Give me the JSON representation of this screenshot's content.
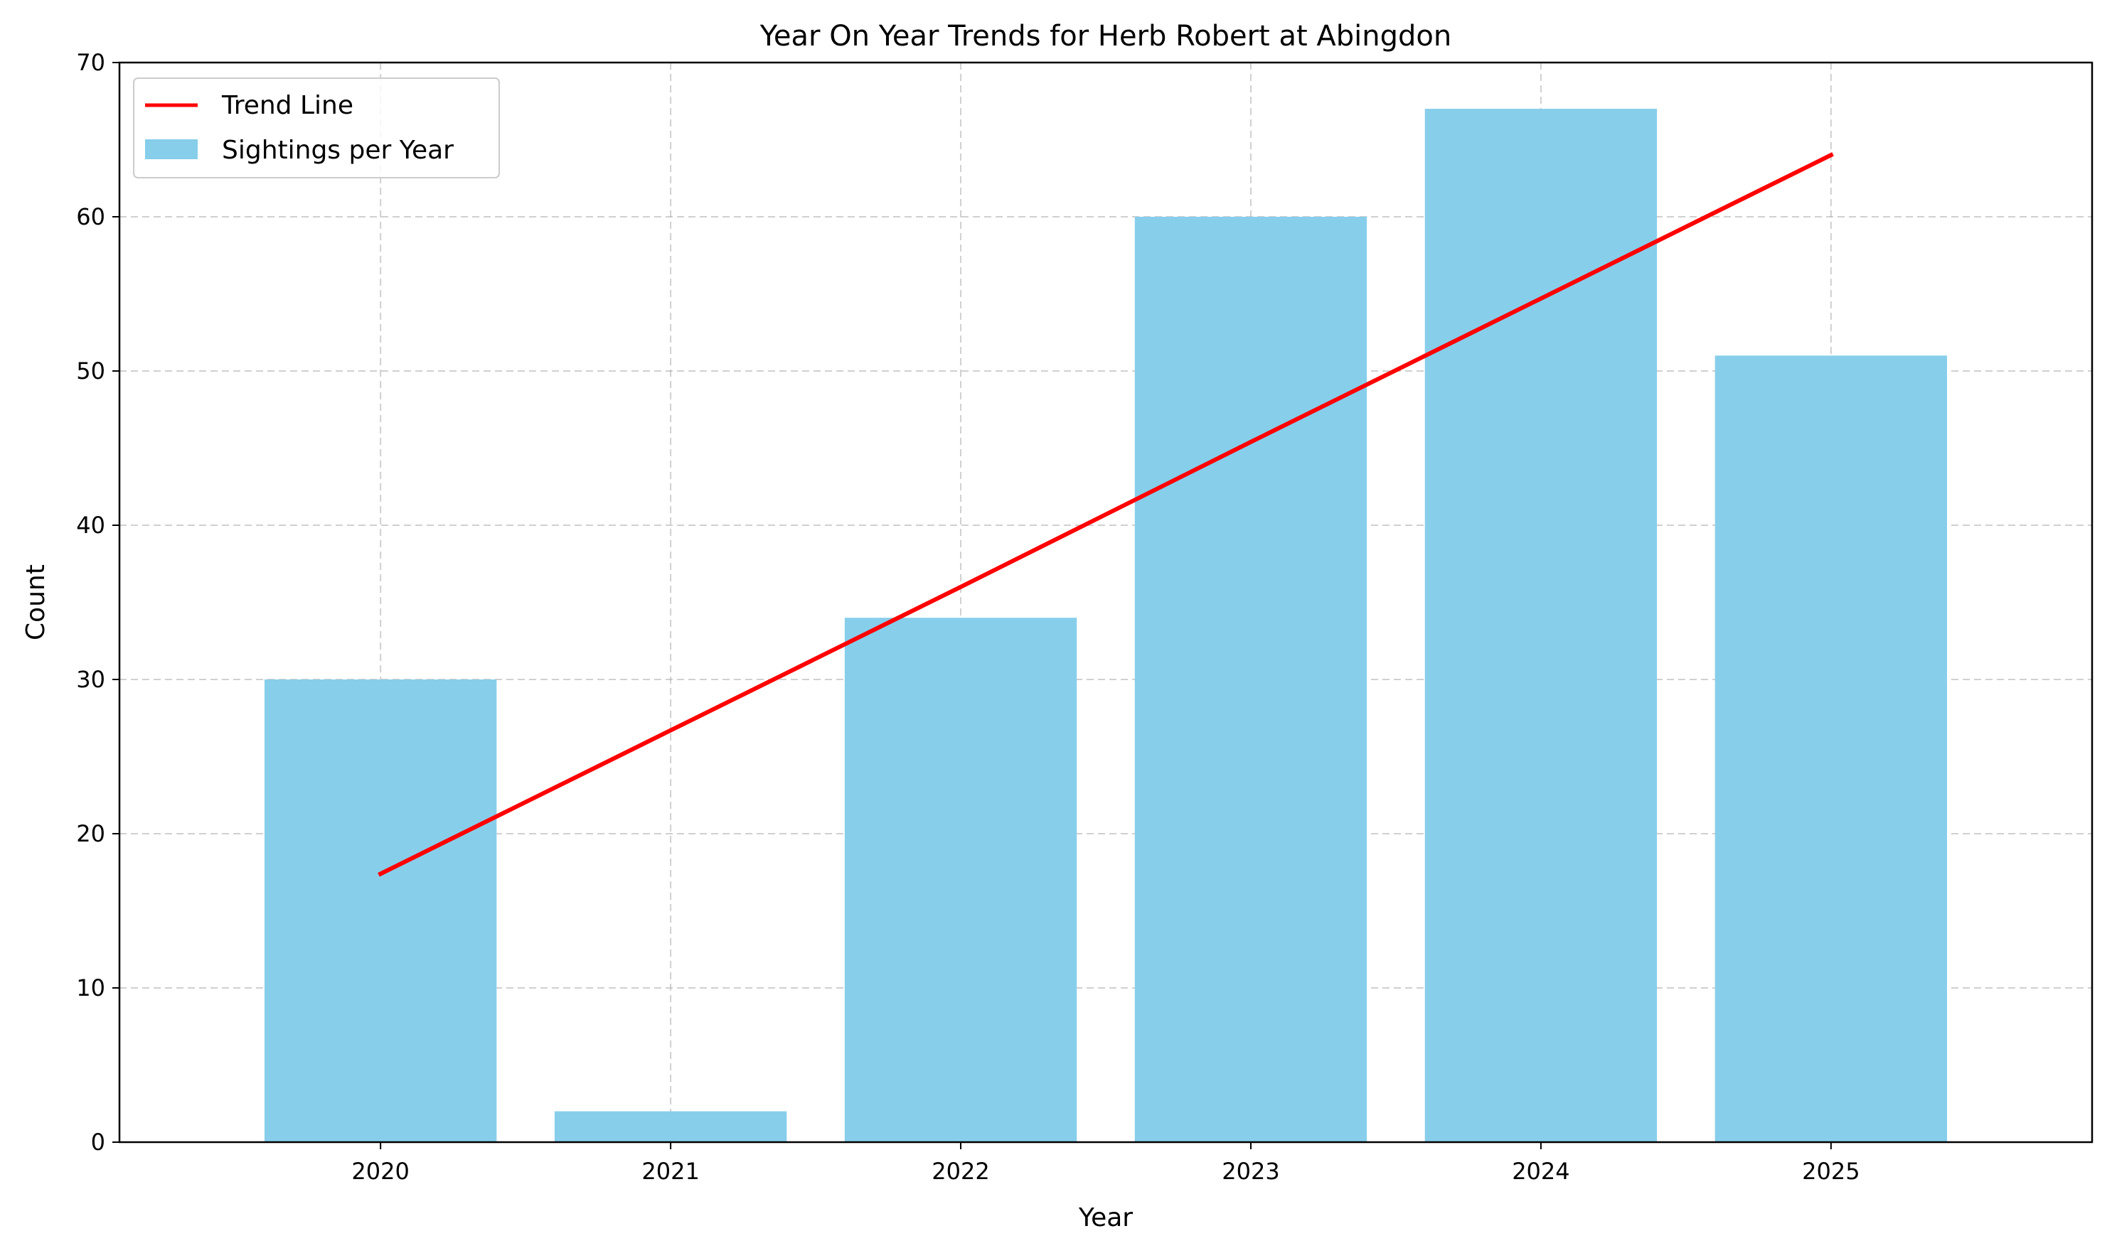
{
  "chart_data": {
    "type": "bar",
    "title": "Year On Year Trends for Herb Robert at Abingdon",
    "xlabel": "Year",
    "ylabel": "Count",
    "categories": [
      "2020",
      "2021",
      "2022",
      "2023",
      "2024",
      "2025"
    ],
    "series": [
      {
        "name": "Sightings per Year",
        "type": "bar",
        "values": [
          30,
          2,
          34,
          60,
          67,
          51
        ],
        "color": "#87ceeb"
      },
      {
        "name": "Trend Line",
        "type": "line",
        "values": [
          17.4,
          26.7,
          36.0,
          45.4,
          54.7,
          64.0
        ],
        "color": "#ff0000"
      }
    ],
    "ylim": [
      0,
      70
    ],
    "yticks": [
      0,
      10,
      20,
      30,
      40,
      50,
      60,
      70
    ],
    "grid": true,
    "legend": {
      "position": "top-left",
      "entries": [
        "Trend Line",
        "Sightings per Year"
      ]
    }
  }
}
